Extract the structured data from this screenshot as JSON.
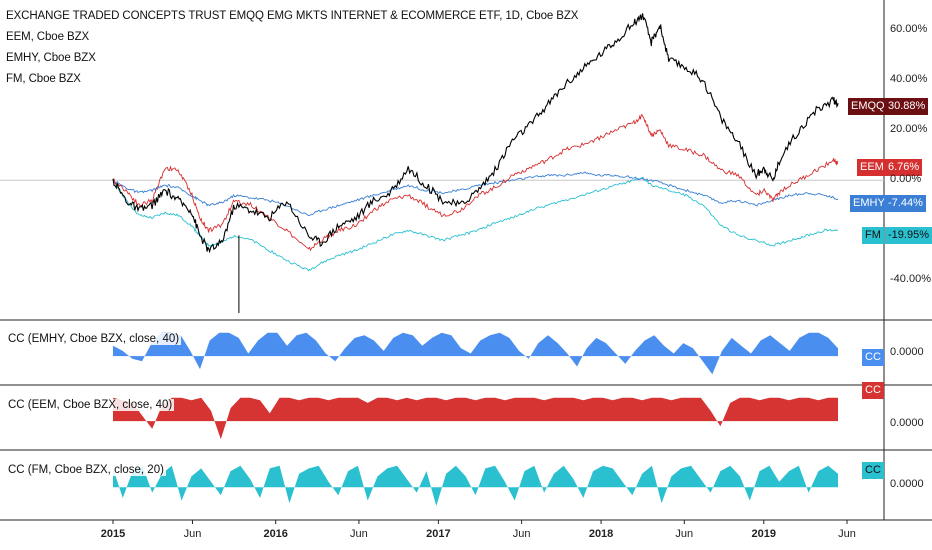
{
  "chart_data": {
    "type": "line",
    "main_pane": {
      "title": "EXCHANGE TRADED CONCEPTS TRUST EMQQ EMG MKTS INTERNET & ECOMMERCE ETF, 1D, Cboe BZX",
      "overlays": [
        "EEM, Cboe BZX",
        "EMHY, Cboe BZX",
        "FM, Cboe BZX"
      ],
      "y_unit": "percent",
      "ylim": [
        -55,
        70
      ],
      "y_ticks": [
        "60.00%",
        "40.00%",
        "20.00%",
        "0.00%",
        "-40.00%"
      ],
      "series": [
        {
          "name": "EMQQ",
          "color": "#000000",
          "last": "30.88%",
          "last_value": 30.88,
          "points": [
            [
              0,
              0
            ],
            [
              3,
              -8
            ],
            [
              6,
              -12
            ],
            [
              9,
              -10
            ],
            [
              12,
              -4
            ],
            [
              15,
              -8
            ],
            [
              18,
              -12
            ],
            [
              20,
              -22
            ],
            [
              22,
              -28
            ],
            [
              25,
              -25
            ],
            [
              28,
              -10
            ],
            [
              32,
              -12
            ],
            [
              36,
              -15
            ],
            [
              40,
              -8
            ],
            [
              45,
              -22
            ],
            [
              48,
              -25
            ],
            [
              52,
              -18
            ],
            [
              56,
              -15
            ],
            [
              60,
              -8
            ],
            [
              64,
              -5
            ],
            [
              68,
              5
            ],
            [
              72,
              -2
            ],
            [
              76,
              -8
            ],
            [
              80,
              -10
            ],
            [
              84,
              -4
            ],
            [
              88,
              4
            ],
            [
              92,
              16
            ],
            [
              96,
              22
            ],
            [
              100,
              30
            ],
            [
              104,
              38
            ],
            [
              108,
              44
            ],
            [
              112,
              50
            ],
            [
              116,
              56
            ],
            [
              120,
              63
            ],
            [
              122,
              66
            ],
            [
              124,
              55
            ],
            [
              126,
              62
            ],
            [
              128,
              48
            ],
            [
              132,
              45
            ],
            [
              136,
              40
            ],
            [
              140,
              25
            ],
            [
              144,
              15
            ],
            [
              148,
              2
            ],
            [
              150,
              5
            ],
            [
              152,
              0
            ],
            [
              154,
              10
            ],
            [
              158,
              20
            ],
            [
              162,
              28
            ],
            [
              166,
              32
            ],
            [
              167,
              30.88
            ]
          ]
        },
        {
          "name": "EEM",
          "color": "#d62f2f",
          "last": "6.76%",
          "last_value": 6.76,
          "points": [
            [
              0,
              0
            ],
            [
              3,
              -4
            ],
            [
              6,
              -10
            ],
            [
              9,
              -8
            ],
            [
              12,
              5
            ],
            [
              15,
              4
            ],
            [
              18,
              -5
            ],
            [
              20,
              -15
            ],
            [
              22,
              -20
            ],
            [
              25,
              -18
            ],
            [
              28,
              -8
            ],
            [
              32,
              -10
            ],
            [
              36,
              -15
            ],
            [
              40,
              -20
            ],
            [
              45,
              -28
            ],
            [
              48,
              -24
            ],
            [
              52,
              -20
            ],
            [
              56,
              -18
            ],
            [
              60,
              -12
            ],
            [
              64,
              -8
            ],
            [
              68,
              -6
            ],
            [
              72,
              -10
            ],
            [
              76,
              -14
            ],
            [
              80,
              -12
            ],
            [
              84,
              -6
            ],
            [
              88,
              -3
            ],
            [
              92,
              2
            ],
            [
              96,
              5
            ],
            [
              100,
              8
            ],
            [
              104,
              12
            ],
            [
              108,
              14
            ],
            [
              112,
              17
            ],
            [
              116,
              20
            ],
            [
              120,
              23
            ],
            [
              122,
              26
            ],
            [
              124,
              18
            ],
            [
              126,
              20
            ],
            [
              128,
              14
            ],
            [
              132,
              12
            ],
            [
              136,
              10
            ],
            [
              140,
              4
            ],
            [
              144,
              2
            ],
            [
              148,
              -6
            ],
            [
              150,
              -4
            ],
            [
              152,
              -8
            ],
            [
              154,
              -4
            ],
            [
              158,
              0
            ],
            [
              162,
              4
            ],
            [
              166,
              8
            ],
            [
              167,
              6.76
            ]
          ]
        },
        {
          "name": "EMHY",
          "color": "#3a7fd5",
          "last": "-7.44%",
          "last_value": -7.44,
          "points": [
            [
              0,
              0
            ],
            [
              3,
              -3
            ],
            [
              6,
              -5
            ],
            [
              9,
              -4
            ],
            [
              12,
              -2
            ],
            [
              15,
              -3
            ],
            [
              18,
              -6
            ],
            [
              20,
              -8
            ],
            [
              22,
              -10
            ],
            [
              25,
              -9
            ],
            [
              28,
              -6
            ],
            [
              32,
              -7
            ],
            [
              36,
              -8
            ],
            [
              40,
              -10
            ],
            [
              45,
              -14
            ],
            [
              48,
              -12
            ],
            [
              52,
              -10
            ],
            [
              56,
              -8
            ],
            [
              60,
              -6
            ],
            [
              64,
              -4
            ],
            [
              68,
              -2
            ],
            [
              72,
              -4
            ],
            [
              76,
              -5
            ],
            [
              80,
              -4
            ],
            [
              84,
              -2
            ],
            [
              88,
              -1
            ],
            [
              92,
              0
            ],
            [
              96,
              1
            ],
            [
              100,
              2
            ],
            [
              104,
              2
            ],
            [
              108,
              3
            ],
            [
              112,
              2
            ],
            [
              116,
              2
            ],
            [
              120,
              1
            ],
            [
              124,
              0
            ],
            [
              128,
              -2
            ],
            [
              132,
              -4
            ],
            [
              136,
              -6
            ],
            [
              140,
              -9
            ],
            [
              144,
              -8
            ],
            [
              148,
              -10
            ],
            [
              152,
              -8
            ],
            [
              156,
              -6
            ],
            [
              160,
              -5
            ],
            [
              164,
              -6
            ],
            [
              167,
              -7.44
            ]
          ]
        },
        {
          "name": "FM",
          "color": "#2bc0d0",
          "last": "-19.95%",
          "last_value": -19.95,
          "points": [
            [
              0,
              0
            ],
            [
              3,
              -8
            ],
            [
              6,
              -14
            ],
            [
              9,
              -15
            ],
            [
              12,
              -13
            ],
            [
              15,
              -14
            ],
            [
              18,
              -18
            ],
            [
              20,
              -22
            ],
            [
              22,
              -26
            ],
            [
              25,
              -25
            ],
            [
              28,
              -22
            ],
            [
              32,
              -24
            ],
            [
              36,
              -28
            ],
            [
              40,
              -32
            ],
            [
              45,
              -36
            ],
            [
              48,
              -33
            ],
            [
              52,
              -30
            ],
            [
              56,
              -28
            ],
            [
              60,
              -25
            ],
            [
              64,
              -22
            ],
            [
              68,
              -20
            ],
            [
              72,
              -22
            ],
            [
              76,
              -24
            ],
            [
              80,
              -22
            ],
            [
              84,
              -20
            ],
            [
              88,
              -17
            ],
            [
              92,
              -15
            ],
            [
              96,
              -12
            ],
            [
              100,
              -10
            ],
            [
              104,
              -8
            ],
            [
              108,
              -6
            ],
            [
              112,
              -4
            ],
            [
              116,
              -2
            ],
            [
              120,
              0
            ],
            [
              122,
              1
            ],
            [
              124,
              -2
            ],
            [
              128,
              -4
            ],
            [
              132,
              -6
            ],
            [
              136,
              -10
            ],
            [
              140,
              -18
            ],
            [
              144,
              -22
            ],
            [
              148,
              -24
            ],
            [
              152,
              -26
            ],
            [
              156,
              -24
            ],
            [
              160,
              -22
            ],
            [
              164,
              -20
            ],
            [
              167,
              -19.95
            ]
          ]
        }
      ]
    },
    "cc_panes": [
      {
        "title": "CC (EMHY, Cboe BZX, close, 40)",
        "color": "#4a8ff0",
        "tag": "CC",
        "tick": "0.0000",
        "values": [
          0.4,
          0.2,
          -0.1,
          -0.2,
          0.5,
          0.9,
          0.9,
          0.8,
          0.2,
          -0.5,
          0.6,
          0.9,
          0.9,
          0.7,
          0.1,
          0.6,
          0.9,
          0.9,
          0.4,
          0.8,
          0.9,
          0.6,
          0.1,
          -0.2,
          0.3,
          0.7,
          0.8,
          0.6,
          0.2,
          0.7,
          0.9,
          0.8,
          0.4,
          0.7,
          0.9,
          0.8,
          0.3,
          0.1,
          0.6,
          0.8,
          0.9,
          0.7,
          0.2,
          -0.1,
          0.5,
          0.8,
          0.5,
          0.1,
          -0.4,
          0.3,
          0.7,
          0.5,
          0.1,
          -0.3,
          0.2,
          0.6,
          0.8,
          0.4,
          0.1,
          0.5,
          0.3,
          -0.2,
          -0.7,
          0.2,
          0.7,
          0.4,
          0.1,
          0.6,
          0.8,
          0.5,
          0.2,
          0.7,
          0.9,
          0.9,
          0.7,
          0.3
        ]
      },
      {
        "title": "CC (EEM, Cboe BZX, close, 40)",
        "color": "#d63333",
        "tag": "CC",
        "tick": "0.0000",
        "values": [
          0.9,
          0.8,
          0.7,
          0.2,
          -0.3,
          0.6,
          0.9,
          0.9,
          0.8,
          0.9,
          0.4,
          -0.7,
          0.5,
          0.9,
          0.9,
          0.8,
          0.3,
          0.9,
          0.9,
          0.8,
          0.9,
          0.9,
          0.8,
          0.9,
          0.9,
          0.9,
          0.7,
          0.9,
          0.9,
          0.8,
          0.9,
          0.8,
          0.9,
          0.9,
          0.8,
          0.9,
          0.9,
          0.8,
          0.9,
          0.9,
          0.8,
          0.9,
          0.9,
          0.9,
          0.8,
          0.9,
          0.9,
          0.9,
          0.8,
          0.9,
          0.9,
          0.8,
          0.9,
          0.9,
          0.8,
          0.9,
          0.9,
          0.8,
          0.9,
          0.9,
          0.9,
          0.4,
          -0.2,
          0.7,
          0.9,
          0.9,
          0.8,
          0.9,
          0.9,
          0.8,
          0.9,
          0.9,
          0.8,
          0.9,
          0.9
        ]
      },
      {
        "title": "CC (FM, Cboe BZX, close, 20)",
        "color": "#2bc0d0",
        "tag": "CC",
        "tick": "0.0000",
        "values": [
          0.7,
          -0.4,
          0.6,
          0.8,
          -0.2,
          0.5,
          0.8,
          -0.5,
          0.4,
          0.7,
          0.2,
          -0.3,
          0.6,
          0.8,
          0.3,
          -0.4,
          0.7,
          0.8,
          -0.6,
          0.5,
          0.7,
          0.8,
          0.2,
          -0.3,
          0.6,
          0.8,
          -0.5,
          0.4,
          0.7,
          0.8,
          0.3,
          -0.2,
          0.6,
          -0.7,
          0.5,
          0.8,
          0.4,
          -0.3,
          0.7,
          0.8,
          0.2,
          -0.5,
          0.6,
          0.8,
          -0.2,
          0.5,
          0.8,
          0.3,
          -0.4,
          0.6,
          0.8,
          0.7,
          0.2,
          -0.3,
          0.5,
          0.8,
          -0.6,
          0.4,
          0.7,
          0.8,
          0.3,
          -0.2,
          0.6,
          0.8,
          0.4,
          -0.5,
          0.6,
          0.8,
          0.2,
          0.6,
          0.8,
          -0.2,
          0.6,
          0.8,
          0.5
        ]
      }
    ],
    "x_ticks": [
      "2015",
      "Jun",
      "2016",
      "Jun",
      "2017",
      "Jun",
      "2018",
      "Jun",
      "2019",
      "Jun"
    ],
    "x_tick_days": [
      0,
      21,
      43,
      65,
      86,
      108,
      129,
      151,
      172,
      194
    ],
    "x_range_days": [
      -2,
      200
    ],
    "grid": false
  }
}
